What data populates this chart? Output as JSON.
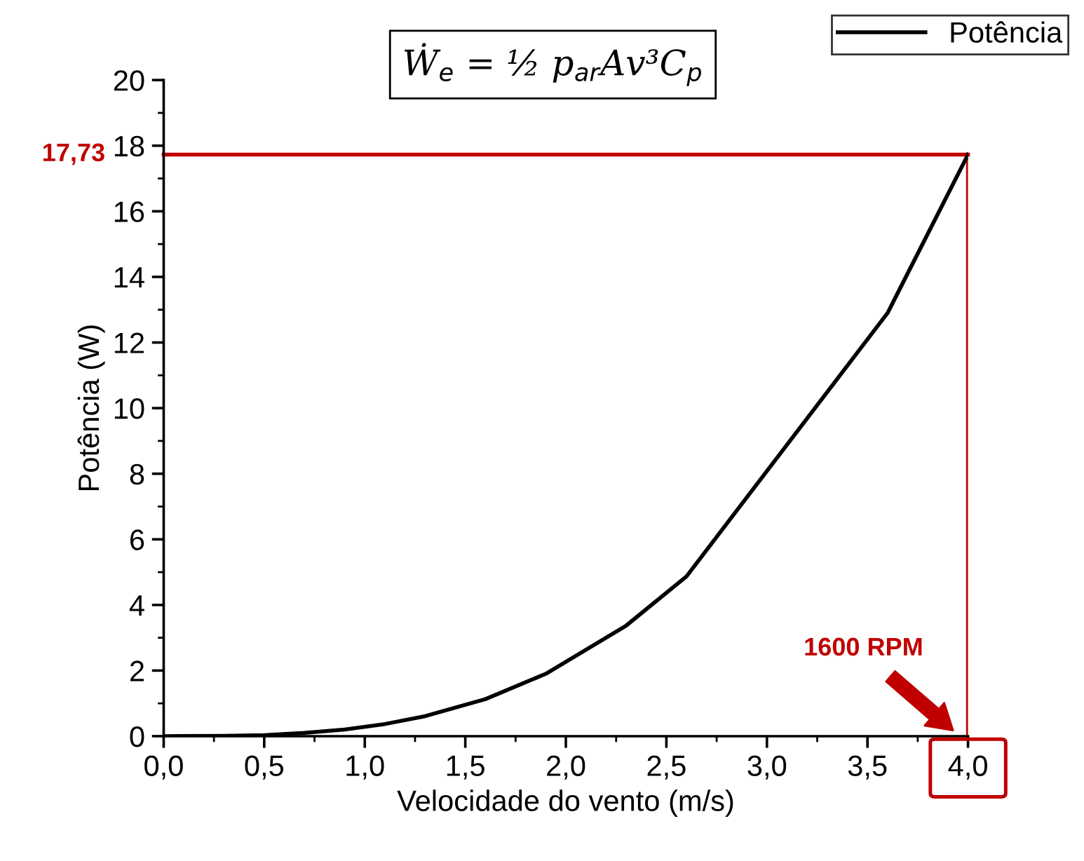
{
  "chart_data": {
    "type": "line",
    "xlabel": "Velocidade do vento (m/s)",
    "ylabel": "Potência (W)",
    "x": [
      0,
      0.3,
      0.5,
      0.7,
      0.9,
      1.1,
      1.3,
      1.6,
      1.9,
      2.3,
      2.6,
      3.6,
      4.0
    ],
    "series": [
      {
        "name": "Potência",
        "color": "#000000",
        "values": [
          0,
          0.01,
          0.03,
          0.1,
          0.2,
          0.37,
          0.61,
          1.13,
          1.9,
          3.37,
          4.87,
          12.9,
          17.73
        ]
      }
    ],
    "xlim": [
      0,
      4.0
    ],
    "ylim": [
      0,
      20
    ],
    "xticks": [
      {
        "value": 0,
        "label": "0,0"
      },
      {
        "value": 0.5,
        "label": "0,5"
      },
      {
        "value": 1.0,
        "label": "1,0"
      },
      {
        "value": 1.5,
        "label": "1,5"
      },
      {
        "value": 2.0,
        "label": "2,0"
      },
      {
        "value": 2.5,
        "label": "2,5"
      },
      {
        "value": 3.0,
        "label": "3,0"
      },
      {
        "value": 3.5,
        "label": "3,5"
      },
      {
        "value": 4.0,
        "label": "4,0"
      }
    ],
    "yticks": [
      0,
      2,
      4,
      6,
      8,
      10,
      12,
      14,
      16,
      18,
      20
    ],
    "ref_lines": [
      {
        "axis": "y",
        "value": 17.73,
        "label": "17,73",
        "color": "#c00000"
      },
      {
        "axis": "x",
        "value": 4.0,
        "color": "#c00000"
      }
    ],
    "annotations": [
      "Ẇ$_{e}$ = ½ p$_{ar}$Av³C$_{p}$",
      "1600 RPM"
    ],
    "legend": "top right",
    "grid": false,
    "marker": "none",
    "line_style": "solid"
  }
}
